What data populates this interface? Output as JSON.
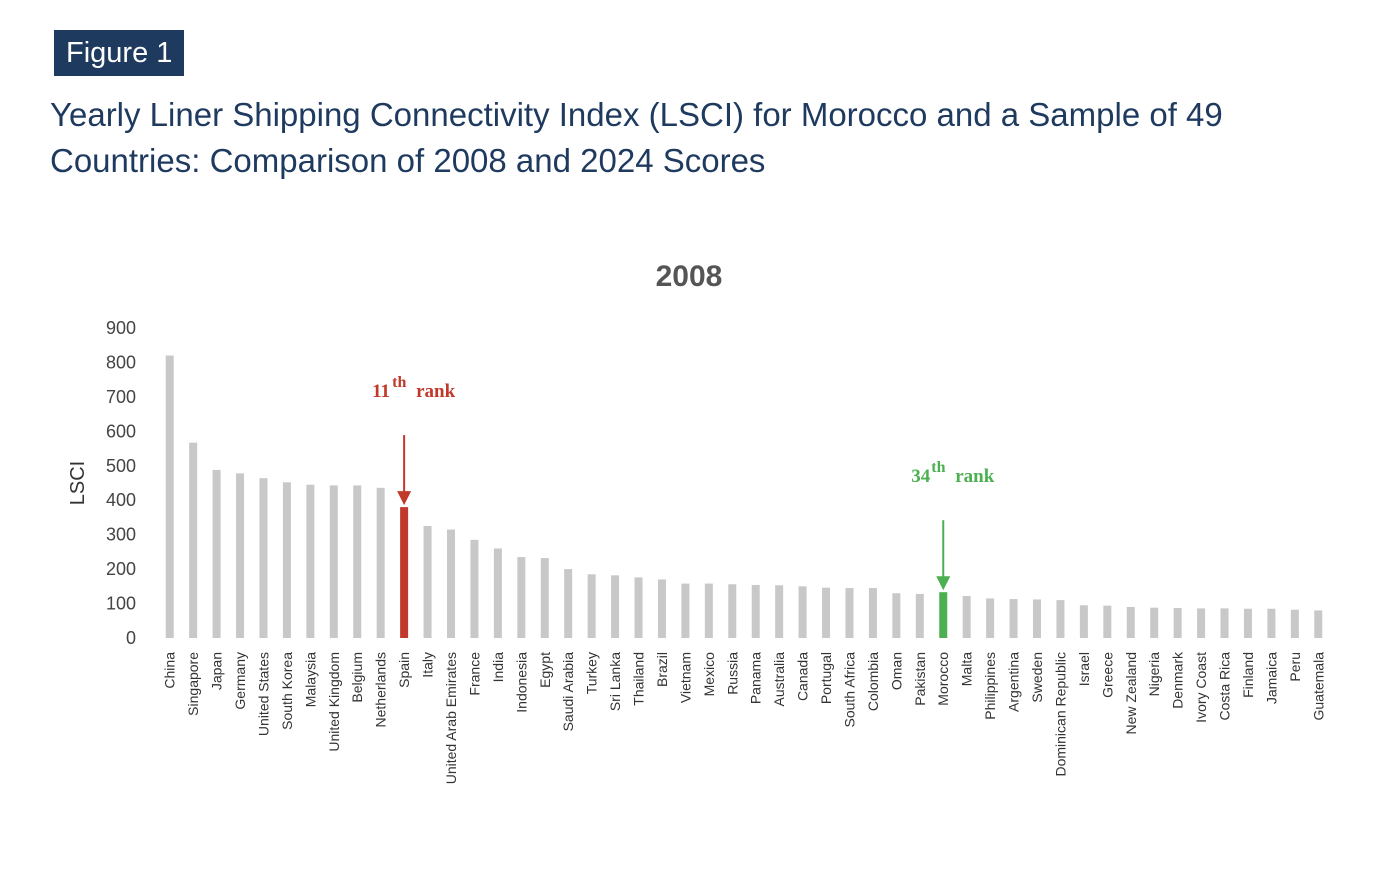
{
  "figure": {
    "label": "Figure 1",
    "title": "Yearly Liner Shipping Connectivity Index (LSCI) for Morocco and a Sample of 49 Countries: Comparison of 2008 and 2024 Scores"
  },
  "chart_data": {
    "type": "bar",
    "title": "2008",
    "xlabel": "",
    "ylabel": "LSCI",
    "ylim": [
      0,
      900
    ],
    "yticks": [
      "0",
      "100",
      "200",
      "300",
      "400",
      "500",
      "600",
      "700",
      "800",
      "900"
    ],
    "grid": false,
    "categories": [
      "China",
      "Singapore",
      "Japan",
      "Germany",
      "United States",
      "South Korea",
      "Malaysia",
      "United Kingdom",
      "Belgium",
      "Netherlands",
      "Spain",
      "Italy",
      "United Arab Emirates",
      "France",
      "India",
      "Indonesia",
      "Egypt",
      "Saudi Arabia",
      "Turkey",
      "Sri Lanka",
      "Thailand",
      "Brazil",
      "Vietnam",
      "Mexico",
      "Russia",
      "Panama",
      "Australia",
      "Canada",
      "Portugal",
      "South Africa",
      "Colombia",
      "Oman",
      "Pakistan",
      "Morocco",
      "Malta",
      "Philippines",
      "Argentina",
      "Sweden",
      "Dominican Republic",
      "Israel",
      "Greece",
      "New Zealand",
      "Nigeria",
      "Denmark",
      "Ivory Coast",
      "Costa Rica",
      "Finland",
      "Jamaica",
      "Peru",
      "Guatemala"
    ],
    "values": [
      820,
      567,
      488,
      478,
      464,
      452,
      445,
      443,
      443,
      436,
      380,
      325,
      315,
      285,
      260,
      235,
      232,
      200,
      185,
      182,
      176,
      170,
      158,
      158,
      156,
      154,
      153,
      150,
      146,
      145,
      145,
      130,
      128,
      133,
      122,
      115,
      113,
      112,
      110,
      95,
      94,
      90,
      88,
      87,
      86,
      86,
      85,
      85,
      82,
      80
    ],
    "colors": {
      "default": "#c8c8c8",
      "Spain": "#c0392b",
      "Morocco": "#4caf50"
    },
    "annotations": [
      {
        "category": "Spain",
        "rank": "11",
        "suffix": "th",
        "text": "rank",
        "color": "#c0392b"
      },
      {
        "category": "Morocco",
        "rank": "34",
        "suffix": "th",
        "text": "rank",
        "color": "#4caf50"
      }
    ]
  }
}
